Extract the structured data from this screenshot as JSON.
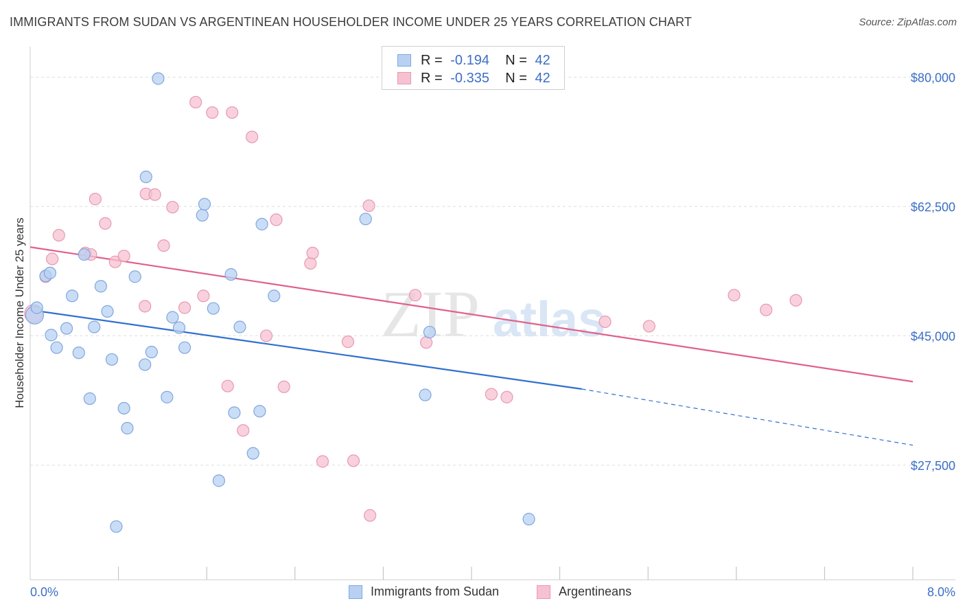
{
  "title": "IMMIGRANTS FROM SUDAN VS ARGENTINEAN HOUSEHOLDER INCOME UNDER 25 YEARS CORRELATION CHART",
  "source": "Source: ZipAtlas.com",
  "watermark": {
    "zip": "ZIP",
    "atlas": "atlas"
  },
  "legend": {
    "rows": [
      {
        "r_label": "R =",
        "r_value": "-0.194",
        "n_label": "N =",
        "n_value": "42"
      },
      {
        "r_label": "R =",
        "r_value": "-0.335",
        "n_label": "N =",
        "n_value": "42"
      }
    ]
  },
  "colors": {
    "sudan_fill": "#b8d1f3",
    "sudan_stroke": "#7fa6dd",
    "sudan_line": "#2f6fd0",
    "arg_fill": "#f6c2d2",
    "arg_stroke": "#e898b2",
    "arg_line": "#e0608a",
    "grid": "#dddddd",
    "axis_text": "#3b6fc4"
  },
  "chart_data": {
    "type": "scatter",
    "title": "IMMIGRANTS FROM SUDAN VS ARGENTINEAN HOUSEHOLDER INCOME UNDER 25 YEARS CORRELATION CHART",
    "xlabel": "",
    "ylabel": "Householder Income Under 25 years",
    "xlim": [
      0,
      8
    ],
    "ylim": [
      12000,
      83000
    ],
    "x_tick_labels": [
      "0.0%",
      "8.0%"
    ],
    "y_ticks": [
      27500,
      45000,
      62500,
      80000
    ],
    "y_tick_labels": [
      "$27,500",
      "$45,000",
      "$62,500",
      "$80,000"
    ],
    "grid": true,
    "legend_position": "bottom",
    "series": [
      {
        "name": "Immigrants from Sudan",
        "points": [
          [
            0.04,
            47800
          ],
          [
            0.06,
            48800
          ],
          [
            0.14,
            53100
          ],
          [
            0.18,
            53500
          ],
          [
            0.19,
            45100
          ],
          [
            0.24,
            43400
          ],
          [
            0.33,
            46000
          ],
          [
            0.38,
            50400
          ],
          [
            0.44,
            42700
          ],
          [
            0.49,
            56000
          ],
          [
            0.54,
            36500
          ],
          [
            0.58,
            46200
          ],
          [
            0.64,
            51700
          ],
          [
            0.7,
            48300
          ],
          [
            0.74,
            41800
          ],
          [
            0.78,
            19200
          ],
          [
            0.85,
            35200
          ],
          [
            0.88,
            32500
          ],
          [
            0.95,
            53000
          ],
          [
            1.05,
            66500
          ],
          [
            1.04,
            41100
          ],
          [
            1.1,
            42800
          ],
          [
            1.16,
            79800
          ],
          [
            1.24,
            36700
          ],
          [
            1.29,
            47500
          ],
          [
            1.35,
            46100
          ],
          [
            1.4,
            43400
          ],
          [
            1.56,
            61300
          ],
          [
            1.58,
            62800
          ],
          [
            1.66,
            48700
          ],
          [
            1.71,
            25400
          ],
          [
            1.82,
            53300
          ],
          [
            1.85,
            34600
          ],
          [
            1.9,
            46200
          ],
          [
            2.02,
            29100
          ],
          [
            2.08,
            34800
          ],
          [
            2.1,
            60100
          ],
          [
            2.21,
            50400
          ],
          [
            3.04,
            60800
          ],
          [
            3.58,
            37000
          ],
          [
            3.62,
            45500
          ],
          [
            4.52,
            20200
          ]
        ]
      },
      {
        "name": "Argentineans",
        "points": [
          [
            0.03,
            48000
          ],
          [
            0.14,
            53000
          ],
          [
            0.2,
            55400
          ],
          [
            0.26,
            58600
          ],
          [
            0.5,
            56200
          ],
          [
            0.59,
            63500
          ],
          [
            0.68,
            60200
          ],
          [
            0.77,
            55000
          ],
          [
            0.85,
            55800
          ],
          [
            1.05,
            64200
          ],
          [
            1.04,
            49000
          ],
          [
            1.13,
            64100
          ],
          [
            1.21,
            57200
          ],
          [
            1.29,
            62400
          ],
          [
            1.4,
            48800
          ],
          [
            1.5,
            76600
          ],
          [
            1.57,
            50400
          ],
          [
            1.65,
            75200
          ],
          [
            1.79,
            38200
          ],
          [
            1.83,
            75200
          ],
          [
            1.93,
            32200
          ],
          [
            2.01,
            71900
          ],
          [
            2.14,
            45000
          ],
          [
            2.23,
            60700
          ],
          [
            2.3,
            38100
          ],
          [
            2.54,
            54800
          ],
          [
            2.56,
            56200
          ],
          [
            2.65,
            28000
          ],
          [
            2.88,
            44200
          ],
          [
            2.93,
            28100
          ],
          [
            3.07,
            62600
          ],
          [
            3.08,
            20700
          ],
          [
            3.49,
            50500
          ],
          [
            3.59,
            44100
          ],
          [
            4.18,
            37100
          ],
          [
            4.32,
            36700
          ],
          [
            5.21,
            46900
          ],
          [
            5.61,
            46300
          ],
          [
            6.38,
            50500
          ],
          [
            6.67,
            48500
          ],
          [
            6.94,
            49800
          ],
          [
            0.55,
            56000
          ]
        ]
      }
    ],
    "trend_lines": [
      {
        "series": "Immigrants from Sudan",
        "from": [
          0.0,
          48500
        ],
        "to": [
          5.0,
          37800
        ],
        "dashed_to": [
          8.0,
          30200
        ]
      },
      {
        "series": "Argentineans",
        "from": [
          0.0,
          57000
        ],
        "to": [
          8.0,
          38800
        ]
      }
    ]
  }
}
